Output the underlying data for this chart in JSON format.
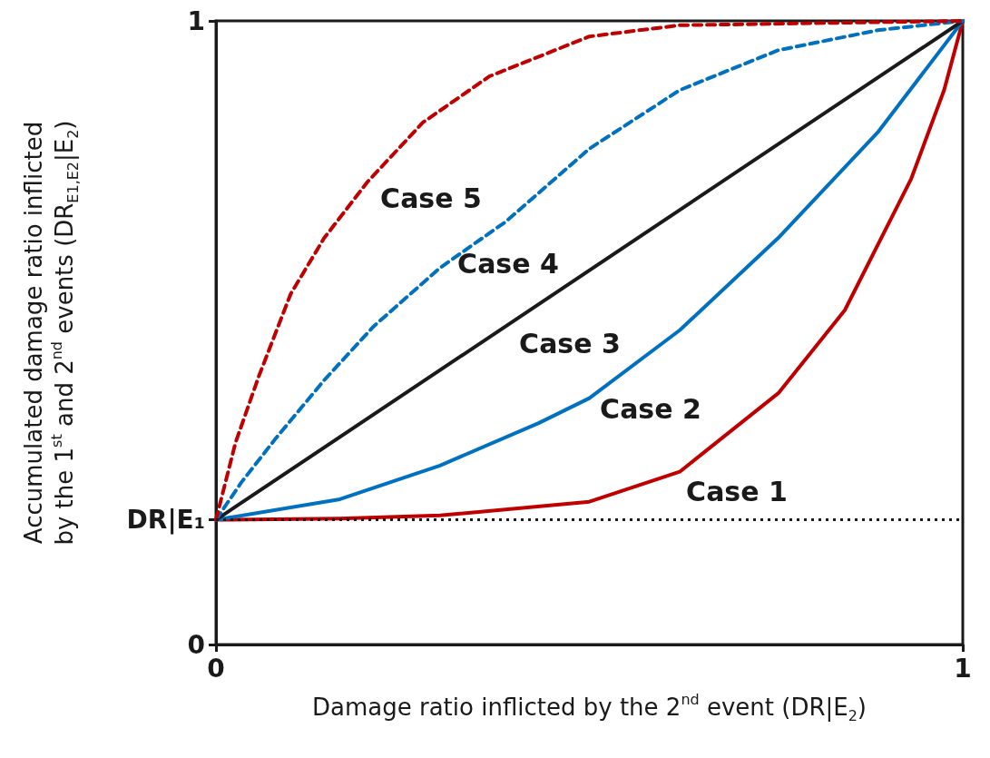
{
  "chart_data": {
    "type": "line",
    "xlabel": "Damage ratio inflicted by the 2$^{nd}$ event (DR|E$_{2}$)",
    "ylabel": "Accumulated damage ratio inflicted\nby the 1$^{st}$ and 2$^{nd}$ events (DR$_{E1,E2}$|E$_{2}$)",
    "xlim": [
      0,
      1
    ],
    "xticks": [
      0,
      1
    ],
    "ylim": [
      0,
      1
    ],
    "yticks": [
      0,
      {
        "value": 0.2,
        "label": "DR|E₁"
      },
      1
    ],
    "grid": false,
    "legend": false,
    "marker": "none",
    "ref_lines": [
      {
        "axis": "y",
        "value": 0.2,
        "color": "#1a1a1a",
        "line_style": "dotted"
      }
    ],
    "series": [
      {
        "name": "Case 1",
        "color": "#c00000",
        "line_style": "solid",
        "x": [
          0,
          0.166,
          0.3,
          0.5,
          0.621,
          0.753,
          0.842,
          0.931,
          0.975,
          1
        ],
        "values": [
          0.2,
          0.202,
          0.207,
          0.229,
          0.277,
          0.403,
          0.536,
          0.747,
          0.889,
          1
        ]
      },
      {
        "name": "Case 2",
        "color": "#0070c0",
        "line_style": "solid",
        "x": [
          0,
          0.166,
          0.3,
          0.432,
          0.5,
          0.621,
          0.753,
          0.886,
          1
        ],
        "values": [
          0.2,
          0.233,
          0.287,
          0.355,
          0.395,
          0.504,
          0.652,
          0.821,
          1
        ]
      },
      {
        "name": "Case 3",
        "color": "#1a1a1a",
        "line_style": "solid",
        "x": [
          0,
          1
        ],
        "values": [
          0.2,
          1
        ]
      },
      {
        "name": "Case 4",
        "color": "#0070c0",
        "line_style": "dashed",
        "x": [
          0,
          0.034,
          0.079,
          0.145,
          0.211,
          0.3,
          0.388,
          0.5,
          0.621,
          0.753,
          0.886,
          1
        ],
        "values": [
          0.2,
          0.26,
          0.329,
          0.424,
          0.51,
          0.604,
          0.678,
          0.795,
          0.889,
          0.953,
          0.985,
          1
        ]
      },
      {
        "name": "Case 5",
        "color": "#c00000",
        "line_style": "dashed",
        "x": [
          0,
          0.026,
          0.057,
          0.1,
          0.145,
          0.203,
          0.277,
          0.366,
          0.5,
          0.621,
          1
        ],
        "values": [
          0.2,
          0.323,
          0.429,
          0.562,
          0.652,
          0.742,
          0.837,
          0.911,
          0.975,
          0.993,
          1
        ]
      }
    ]
  }
}
